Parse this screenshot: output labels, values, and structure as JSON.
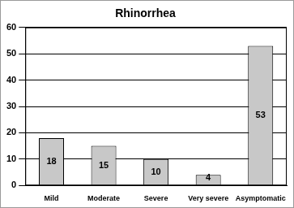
{
  "chart_data": {
    "type": "bar",
    "title": "Rhinorrhea",
    "categories": [
      "Mild",
      "Moderate",
      "Severe",
      "Very severe",
      "Asymptomatic"
    ],
    "values": [
      18,
      15,
      10,
      4,
      53
    ],
    "color": "#c8c8c8",
    "ylim": [
      0,
      60
    ],
    "yticks": [
      0,
      10,
      20,
      30,
      40,
      50,
      60
    ],
    "grid": true,
    "data_labels": true
  }
}
